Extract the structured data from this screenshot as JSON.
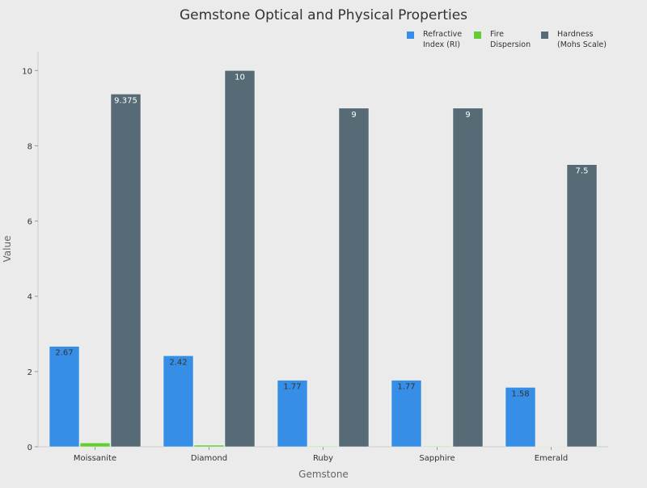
{
  "chart_data": {
    "type": "bar",
    "title": "Gemstone Optical and Physical Properties",
    "xlabel": "Gemstone",
    "ylabel": "Value",
    "categories": [
      "Moissanite",
      "Diamond",
      "Ruby",
      "Sapphire",
      "Emerald"
    ],
    "ylim": [
      0,
      10.5
    ],
    "yticks": [
      0,
      2,
      4,
      6,
      8,
      10
    ],
    "grid": false,
    "legend_placement": "top-right",
    "series": [
      {
        "name": "Refractive Index (RI)",
        "color": "#368ee6",
        "values": [
          2.67,
          2.42,
          1.77,
          1.77,
          1.58
        ],
        "labels": [
          "2.67",
          "2.42",
          "1.77",
          "1.77",
          "1.58"
        ],
        "label_color": "#333333"
      },
      {
        "name": "Fire Dispersion",
        "color": "#66cc33",
        "values": [
          0.104,
          0.044,
          0.018,
          0.018,
          0.014
        ],
        "labels": []
      },
      {
        "name": "Hardness (Mohs Scale)",
        "color": "#566b75",
        "values": [
          9.375,
          10,
          9,
          9,
          7.5
        ],
        "labels": [
          "9.375",
          "10",
          "9",
          "9",
          "7.5"
        ],
        "label_color": "#ffffff"
      }
    ],
    "legend_lines": [
      [
        "Refractive",
        "Index (RI)"
      ],
      [
        "Fire",
        "Dispersion"
      ],
      [
        "Hardness",
        "(Mohs Scale)"
      ]
    ]
  }
}
